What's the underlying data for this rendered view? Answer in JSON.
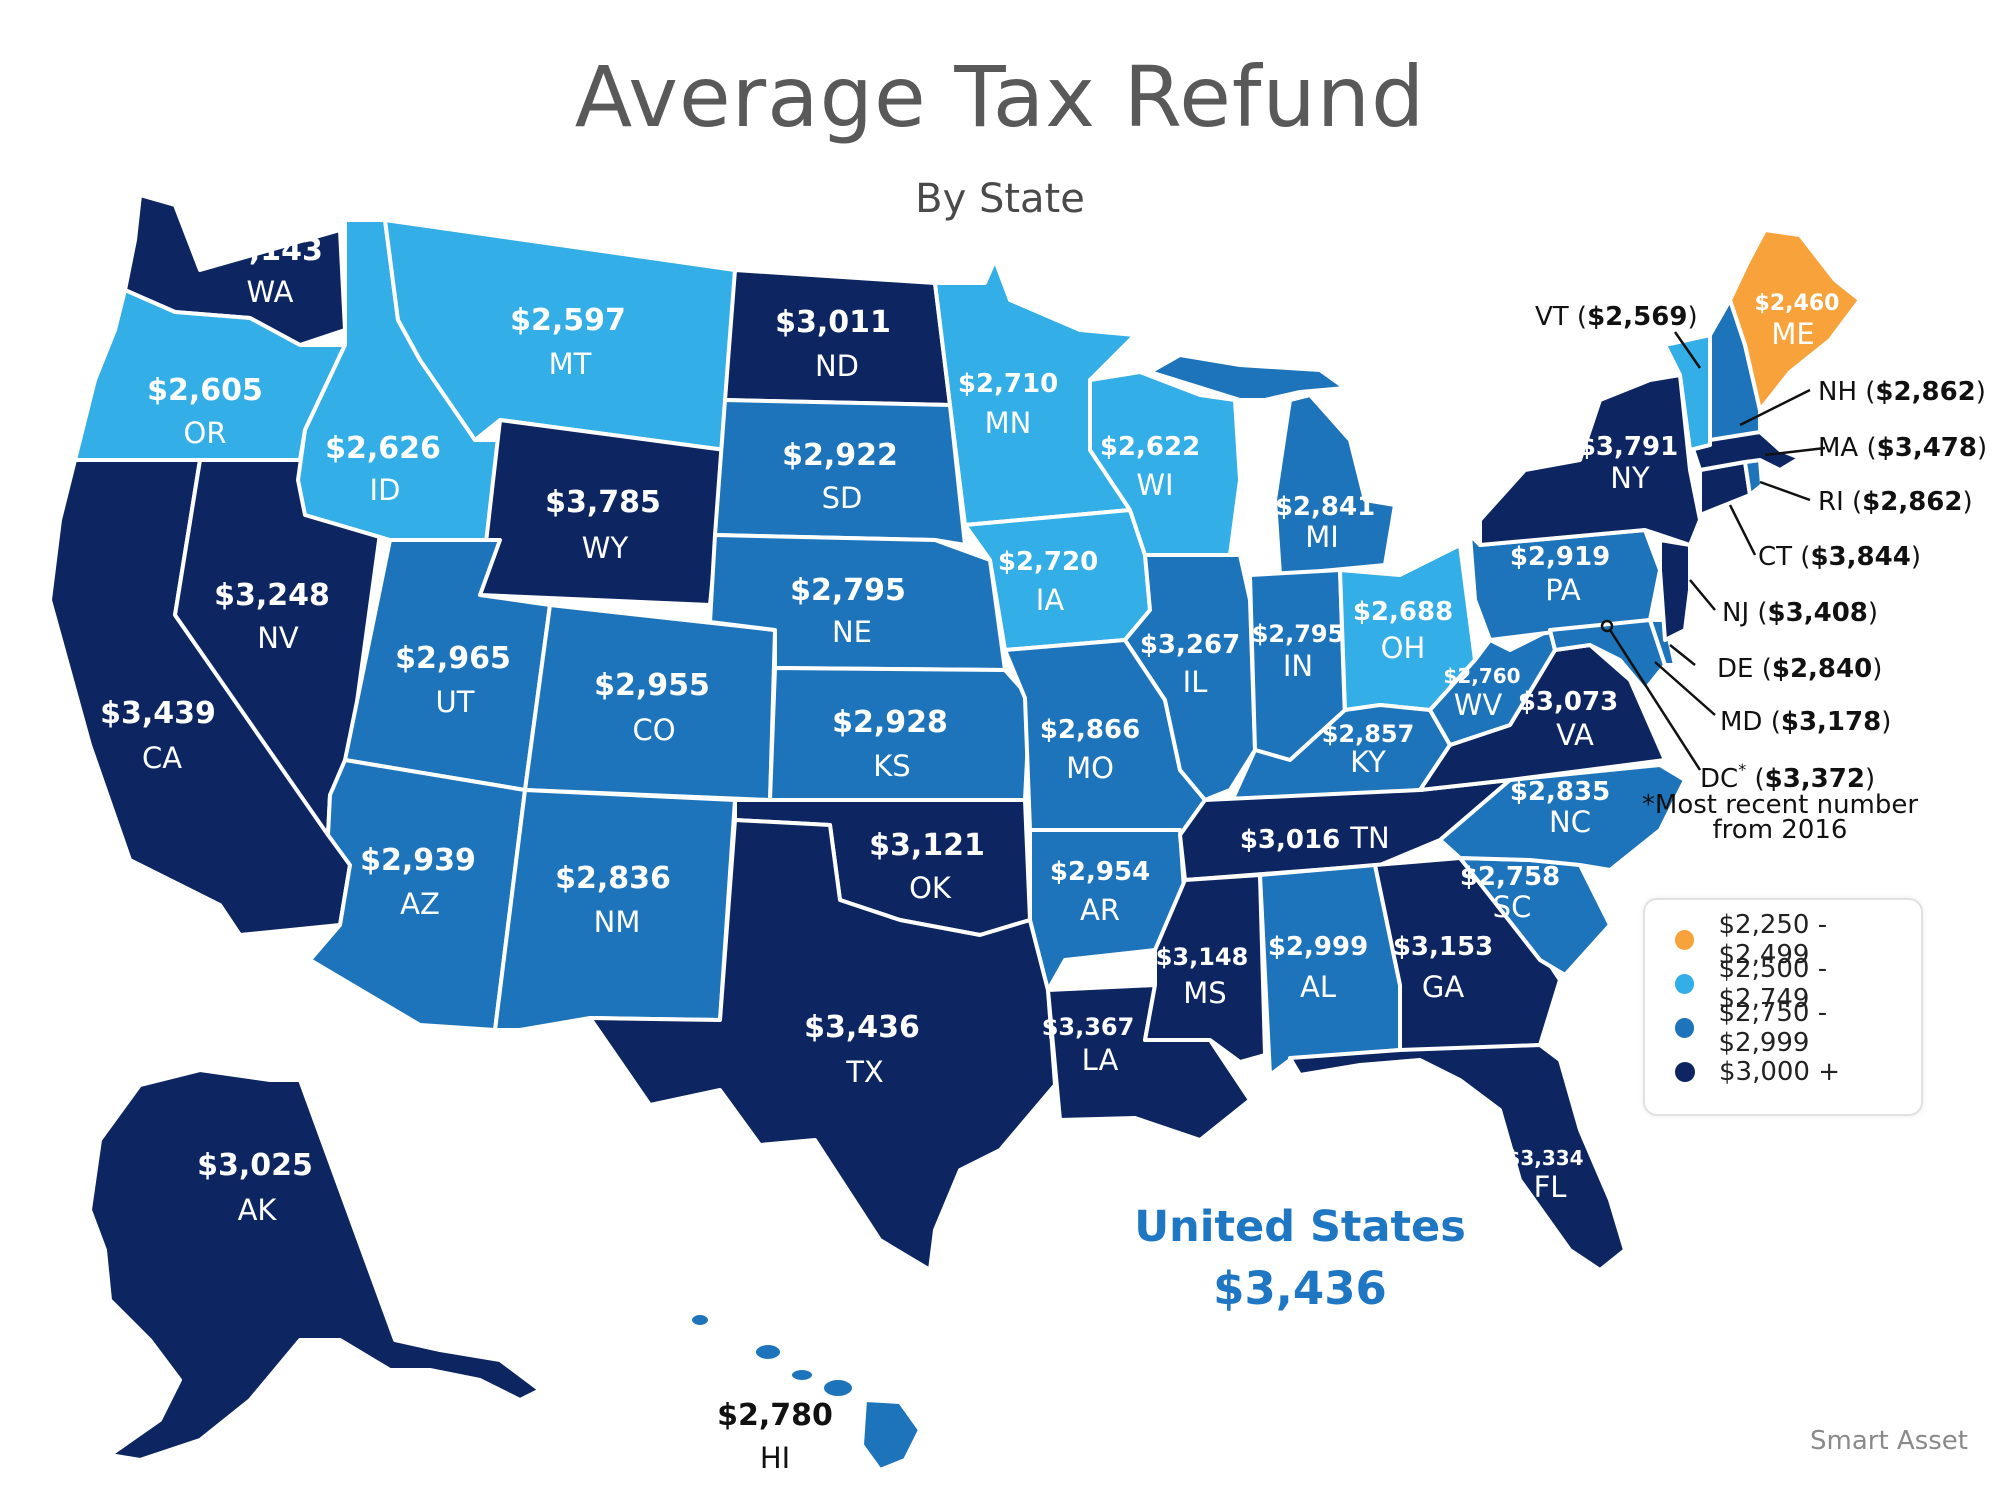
{
  "title": "Average Tax Refund",
  "subtitle": "By State",
  "colors": {
    "tier1": "#f7a23b",
    "tier2": "#33aee6",
    "tier3": "#1e74bb",
    "tier4": "#0d2561",
    "background": "#ffffff"
  },
  "states": {
    "WA": {
      "value": "$3,143",
      "abbr": "WA"
    },
    "OR": {
      "value": "$2,605",
      "abbr": "OR"
    },
    "CA": {
      "value": "$3,439",
      "abbr": "CA"
    },
    "NV": {
      "value": "$3,248",
      "abbr": "NV"
    },
    "ID": {
      "value": "$2,626",
      "abbr": "ID"
    },
    "MT": {
      "value": "$2,597",
      "abbr": "MT"
    },
    "WY": {
      "value": "$3,785",
      "abbr": "WY"
    },
    "UT": {
      "value": "$2,965",
      "abbr": "UT"
    },
    "AZ": {
      "value": "$2,939",
      "abbr": "AZ"
    },
    "CO": {
      "value": "$2,955",
      "abbr": "CO"
    },
    "NM": {
      "value": "$2,836",
      "abbr": "NM"
    },
    "ND": {
      "value": "$3,011",
      "abbr": "ND"
    },
    "SD": {
      "value": "$2,922",
      "abbr": "SD"
    },
    "NE": {
      "value": "$2,795",
      "abbr": "NE"
    },
    "KS": {
      "value": "$2,928",
      "abbr": "KS"
    },
    "OK": {
      "value": "$3,121",
      "abbr": "OK"
    },
    "TX": {
      "value": "$3,436",
      "abbr": "TX"
    },
    "MN": {
      "value": "$2,710",
      "abbr": "MN"
    },
    "IA": {
      "value": "$2,720",
      "abbr": "IA"
    },
    "MO": {
      "value": "$2,866",
      "abbr": "MO"
    },
    "AR": {
      "value": "$2,954",
      "abbr": "AR"
    },
    "LA": {
      "value": "$3,367",
      "abbr": "LA"
    },
    "WI": {
      "value": "$2,622",
      "abbr": "WI"
    },
    "IL": {
      "value": "$3,267",
      "abbr": "IL"
    },
    "MI": {
      "value": "$2,841",
      "abbr": "MI"
    },
    "IN": {
      "value": "$2,795",
      "abbr": "IN"
    },
    "OH": {
      "value": "$2,688",
      "abbr": "OH"
    },
    "KY": {
      "value": "$2,857",
      "abbr": "KY"
    },
    "TN": {
      "value": "$3,016",
      "abbr": "TN"
    },
    "MS": {
      "value": "$3,148",
      "abbr": "MS"
    },
    "AL": {
      "value": "$2,999",
      "abbr": "AL"
    },
    "GA": {
      "value": "$3,153",
      "abbr": "GA"
    },
    "FL": {
      "value": "$3,334",
      "abbr": "FL"
    },
    "SC": {
      "value": "$2,758",
      "abbr": "SC"
    },
    "NC": {
      "value": "$2,835",
      "abbr": "NC"
    },
    "VA": {
      "value": "$3,073",
      "abbr": "VA"
    },
    "WV": {
      "value": "$2,760",
      "abbr": "WV"
    },
    "PA": {
      "value": "$2,919",
      "abbr": "PA"
    },
    "NY": {
      "value": "$3,791",
      "abbr": "NY"
    },
    "ME": {
      "value": "$2,460",
      "abbr": "ME"
    },
    "AK": {
      "value": "$3,025",
      "abbr": "AK"
    },
    "HI": {
      "value": "$2,780",
      "abbr": "HI"
    }
  },
  "callouts": {
    "VT": {
      "abbr": "VT",
      "value": "$2,569"
    },
    "NH": {
      "abbr": "NH",
      "value": "$2,862"
    },
    "MA": {
      "abbr": "MA",
      "value": "$3,478"
    },
    "RI": {
      "abbr": "RI",
      "value": "$2,862"
    },
    "CT": {
      "abbr": "CT",
      "value": "$3,844"
    },
    "NJ": {
      "abbr": "NJ",
      "value": "$3,408"
    },
    "DE": {
      "abbr": "DE",
      "value": "$2,840"
    },
    "MD": {
      "abbr": "MD",
      "value": "$3,178"
    },
    "DC": {
      "abbr": "DC",
      "value": "$3,372",
      "mark": "*",
      "note_line1": "*Most recent number",
      "note_line2": "from 2016"
    }
  },
  "legend": [
    {
      "label": "$2,250 - $2,499",
      "color": "#f7a23b"
    },
    {
      "label": "$2,500 - $2,749",
      "color": "#33aee6"
    },
    {
      "label": "$2,750 - $2,999",
      "color": "#1e74bb"
    },
    {
      "label": "$3,000 +",
      "color": "#0d2561"
    }
  ],
  "national": {
    "name": "United States",
    "value": "$3,436"
  },
  "source": "Smart Asset"
}
